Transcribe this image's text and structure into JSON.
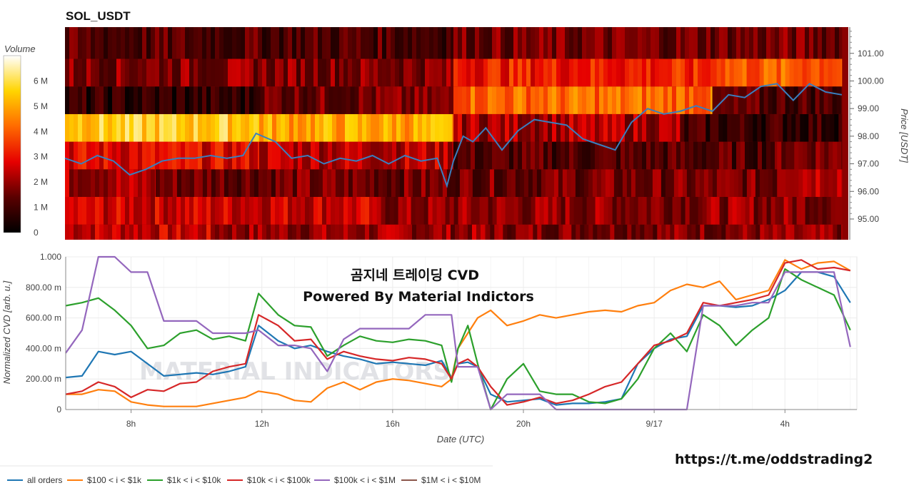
{
  "chart_data": [
    {
      "type": "heatmap",
      "title": "SOL_USDT",
      "colorbar": {
        "label": "Volume",
        "ticks": [
          "0",
          "1 M",
          "2 M",
          "3 M",
          "4 M",
          "5 M",
          "6 M"
        ],
        "range": [
          0,
          7
        ]
      },
      "y_axis": {
        "label": "Price [USDT]",
        "position": "right",
        "range": [
          94.25,
          101.95
        ],
        "ticks": [
          "95.00",
          "96.00",
          "97.00",
          "98.00",
          "99.00",
          "100.00",
          "101.00"
        ]
      },
      "price_line": {
        "name": "price",
        "x_hours": [
          6,
          6.5,
          7,
          7.5,
          8,
          8.5,
          9,
          9.5,
          10,
          10.5,
          11,
          11.5,
          11.9,
          12.5,
          13,
          13.5,
          14,
          14.5,
          15,
          15.5,
          16,
          16.5,
          17,
          17.5,
          17.8,
          18,
          18.3,
          18.6,
          19,
          19.5,
          20,
          20.5,
          21,
          21.5,
          22,
          22.5,
          23,
          23.5,
          24,
          24.5,
          25,
          25.5,
          26,
          26.5,
          27,
          27.5,
          28,
          28.5,
          29,
          29.5,
          30
        ],
        "values": [
          97.2,
          97.0,
          97.3,
          97.1,
          96.6,
          96.8,
          97.1,
          97.2,
          97.2,
          97.3,
          97.2,
          97.3,
          98.1,
          97.8,
          97.2,
          97.3,
          97.0,
          97.2,
          97.1,
          97.3,
          97.0,
          97.3,
          97.1,
          97.2,
          96.2,
          97.1,
          98.0,
          97.8,
          98.3,
          97.5,
          98.2,
          98.6,
          98.5,
          98.4,
          97.9,
          97.7,
          97.5,
          98.5,
          99.0,
          98.8,
          98.9,
          99.1,
          98.9,
          99.5,
          99.4,
          99.8,
          99.9,
          99.3,
          99.9,
          99.6,
          99.5
        ]
      },
      "levels": [
        {
          "price_range": [
            94.25,
            94.8
          ],
          "volume_segments": [
            [
              6,
              10.5,
              2.5
            ],
            [
              10.5,
              19,
              2.0
            ],
            [
              19,
              30,
              1.8
            ]
          ]
        },
        {
          "price_range": [
            94.8,
            95.8
          ],
          "volume_segments": [
            [
              6,
              15.5,
              2.6
            ],
            [
              15.5,
              30,
              1.9
            ]
          ]
        },
        {
          "price_range": [
            95.8,
            96.8
          ],
          "volume_segments": [
            [
              6,
              8.8,
              2.2
            ],
            [
              8.8,
              28,
              1.6
            ],
            [
              28,
              30,
              2.6
            ]
          ]
        },
        {
          "price_range": [
            96.8,
            97.8
          ],
          "volume_segments": [
            [
              6,
              12,
              2.8
            ],
            [
              12,
              18,
              2.4
            ],
            [
              18,
              28,
              1.2
            ],
            [
              28,
              30,
              1.8
            ]
          ]
        },
        {
          "price_range": [
            97.8,
            98.8
          ],
          "volume_segments": [
            [
              6,
              12,
              5.6
            ],
            [
              12,
              18,
              5.0
            ],
            [
              18,
              25,
              2.2
            ],
            [
              25,
              30,
              0.9
            ]
          ]
        },
        {
          "price_range": [
            98.8,
            99.8
          ],
          "volume_segments": [
            [
              6,
              11.9,
              0.7
            ],
            [
              11.9,
              18,
              1.6
            ],
            [
              18,
              26,
              4.2
            ],
            [
              26,
              30,
              1.2
            ]
          ]
        },
        {
          "price_range": [
            99.8,
            100.8
          ],
          "volume_segments": [
            [
              6,
              18,
              1.8
            ],
            [
              18,
              26,
              3.2
            ],
            [
              26,
              30,
              4.0
            ]
          ]
        },
        {
          "price_range": [
            100.8,
            101.95
          ],
          "volume_segments": [
            [
              6,
              18,
              1.2
            ],
            [
              18,
              30,
              1.6
            ]
          ]
        }
      ]
    },
    {
      "type": "line",
      "title": "",
      "xlabel": "Date (UTC)",
      "ylabel": "Normalized CVD [arb. u.]",
      "x_ticks": [
        "8h",
        "12h",
        "16h",
        "20h",
        "9/17",
        "4h"
      ],
      "y_ticks": [
        "0",
        "200.00 m",
        "400.00 m",
        "600.00 m",
        "800.00 m",
        "1.000"
      ],
      "x_range_hours": [
        6,
        30.2
      ],
      "ylim": [
        0,
        1
      ],
      "annotations": [
        "곰지네 트레이딩 CVD",
        "Powered By Material Indictors"
      ],
      "x_hours": [
        6,
        6.5,
        7,
        7.5,
        8,
        8.5,
        9,
        9.5,
        10,
        10.5,
        11,
        11.5,
        11.9,
        12.5,
        13,
        13.5,
        14,
        14.5,
        15,
        15.5,
        16,
        16.5,
        17,
        17.5,
        17.8,
        18,
        18.3,
        18.6,
        19,
        19.5,
        20,
        20.5,
        21,
        21.5,
        22,
        22.5,
        23,
        23.5,
        24,
        24.5,
        25,
        25.5,
        26,
        26.5,
        27,
        27.5,
        28,
        28.5,
        29,
        29.5,
        30
      ],
      "series": [
        {
          "name": "all orders",
          "color": "#1f77b4",
          "values": [
            0.21,
            0.22,
            0.38,
            0.36,
            0.38,
            0.3,
            0.22,
            0.23,
            0.24,
            0.23,
            0.25,
            0.28,
            0.55,
            0.45,
            0.4,
            0.42,
            0.38,
            0.35,
            0.33,
            0.3,
            0.31,
            0.3,
            0.29,
            0.32,
            0.21,
            0.3,
            0.31,
            0.28,
            0.1,
            0.05,
            0.06,
            0.07,
            0.03,
            0.04,
            0.04,
            0.05,
            0.07,
            0.3,
            0.4,
            0.46,
            0.48,
            0.68,
            0.68,
            0.67,
            0.68,
            0.72,
            0.78,
            0.9,
            0.9,
            0.87,
            0.7
          ]
        },
        {
          "name": "$100 < i < $1k",
          "color": "#ff7f0e",
          "values": [
            0.1,
            0.1,
            0.13,
            0.12,
            0.05,
            0.03,
            0.02,
            0.02,
            0.02,
            0.04,
            0.06,
            0.08,
            0.12,
            0.1,
            0.06,
            0.05,
            0.14,
            0.18,
            0.13,
            0.18,
            0.2,
            0.19,
            0.17,
            0.15,
            0.2,
            0.4,
            0.5,
            0.6,
            0.65,
            0.55,
            0.58,
            0.62,
            0.6,
            0.62,
            0.64,
            0.65,
            0.64,
            0.68,
            0.7,
            0.78,
            0.82,
            0.8,
            0.84,
            0.72,
            0.75,
            0.78,
            0.98,
            0.92,
            0.96,
            0.97,
            0.91
          ]
        },
        {
          "name": "$1k < i < $10k",
          "color": "#2ca02c",
          "values": [
            0.68,
            0.7,
            0.73,
            0.65,
            0.55,
            0.4,
            0.42,
            0.5,
            0.52,
            0.46,
            0.48,
            0.45,
            0.76,
            0.62,
            0.55,
            0.54,
            0.35,
            0.42,
            0.48,
            0.45,
            0.44,
            0.46,
            0.45,
            0.42,
            0.18,
            0.4,
            0.55,
            0.3,
            0.0,
            0.2,
            0.3,
            0.12,
            0.1,
            0.1,
            0.05,
            0.04,
            0.07,
            0.2,
            0.4,
            0.5,
            0.38,
            0.62,
            0.55,
            0.42,
            0.52,
            0.6,
            0.92,
            0.85,
            0.8,
            0.75,
            0.52
          ]
        },
        {
          "name": "$10k < i < $100k",
          "color": "#d62728",
          "values": [
            0.1,
            0.12,
            0.18,
            0.15,
            0.08,
            0.13,
            0.12,
            0.17,
            0.18,
            0.25,
            0.28,
            0.3,
            0.62,
            0.55,
            0.45,
            0.46,
            0.33,
            0.38,
            0.35,
            0.33,
            0.32,
            0.34,
            0.33,
            0.3,
            0.2,
            0.3,
            0.33,
            0.28,
            0.15,
            0.03,
            0.05,
            0.08,
            0.04,
            0.06,
            0.1,
            0.15,
            0.18,
            0.3,
            0.42,
            0.45,
            0.5,
            0.7,
            0.68,
            0.7,
            0.72,
            0.75,
            0.96,
            0.98,
            0.92,
            0.93,
            0.91
          ]
        },
        {
          "name": "$100k < i < $1M",
          "color": "#9467bd",
          "values": [
            0.37,
            0.52,
            1.0,
            1.0,
            0.9,
            0.9,
            0.58,
            0.58,
            0.58,
            0.5,
            0.5,
            0.5,
            0.52,
            0.42,
            0.42,
            0.4,
            0.25,
            0.46,
            0.53,
            0.53,
            0.53,
            0.53,
            0.62,
            0.62,
            0.62,
            0.28,
            0.28,
            0.28,
            0.0,
            0.1,
            0.1,
            0.1,
            0.0,
            0.0,
            0.0,
            0.0,
            0.0,
            0.0,
            0.0,
            0.0,
            0.0,
            0.68,
            0.68,
            0.68,
            0.7,
            0.7,
            0.9,
            0.9,
            0.9,
            0.9,
            0.41
          ]
        },
        {
          "name": "$1M < i < $10M",
          "color": "#8c564b",
          "values": []
        }
      ]
    }
  ],
  "footer_link": "https://t.me/oddstrading2",
  "watermark": "MATERIAL INDICATORS",
  "palette": {
    "heat_low": "#000000",
    "heat_mid": "#ff0000",
    "heat_high": "#ffffff"
  }
}
